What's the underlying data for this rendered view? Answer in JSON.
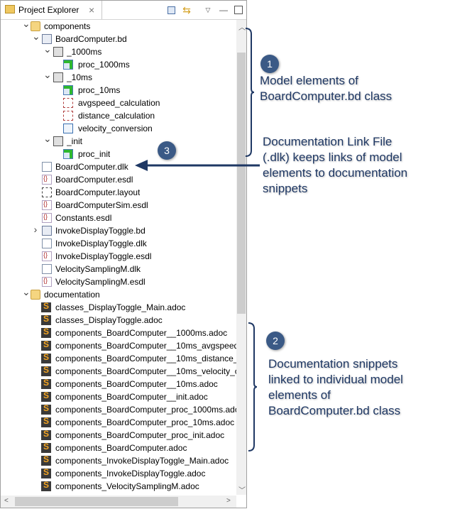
{
  "panel": {
    "title": "Project Explorer",
    "close_icon": "×",
    "toolbar": [
      "collapse-all-icon",
      "link-with-editor-icon",
      "view-menu-icon",
      "minimize-icon",
      "maximize-icon"
    ]
  },
  "tree": [
    {
      "label": "components",
      "level": 0,
      "arrow": "expanded",
      "icon": "folder"
    },
    {
      "label": "BoardComputer.bd",
      "level": 1,
      "arrow": "expanded",
      "icon": "bd"
    },
    {
      "label": "_1000ms",
      "level": 2,
      "arrow": "expanded",
      "icon": "task"
    },
    {
      "label": "proc_1000ms",
      "level": 3,
      "arrow": "none",
      "icon": "proc"
    },
    {
      "label": "_10ms",
      "level": 2,
      "arrow": "expanded",
      "icon": "task"
    },
    {
      "label": "proc_10ms",
      "level": 3,
      "arrow": "none",
      "icon": "proc"
    },
    {
      "label": "avgspeed_calculation",
      "level": 3,
      "arrow": "none",
      "icon": "func"
    },
    {
      "label": "distance_calculation",
      "level": 3,
      "arrow": "none",
      "icon": "func"
    },
    {
      "label": "velocity_conversion",
      "level": 3,
      "arrow": "none",
      "icon": "diagram"
    },
    {
      "label": "_init",
      "level": 2,
      "arrow": "expanded",
      "icon": "task"
    },
    {
      "label": "proc_init",
      "level": 3,
      "arrow": "none",
      "icon": "proc"
    },
    {
      "label": "BoardComputer.dlk",
      "level": 1,
      "arrow": "none",
      "icon": "file"
    },
    {
      "label": "BoardComputer.esdl",
      "level": 1,
      "arrow": "none",
      "icon": "esdl"
    },
    {
      "label": "BoardComputer.layout",
      "level": 1,
      "arrow": "none",
      "icon": "layout"
    },
    {
      "label": "BoardComputerSim.esdl",
      "level": 1,
      "arrow": "none",
      "icon": "esdl"
    },
    {
      "label": "Constants.esdl",
      "level": 1,
      "arrow": "none",
      "icon": "esdl"
    },
    {
      "label": "InvokeDisplayToggle.bd",
      "level": 1,
      "arrow": "collapsed",
      "icon": "bd"
    },
    {
      "label": "InvokeDisplayToggle.dlk",
      "level": 1,
      "arrow": "none",
      "icon": "file"
    },
    {
      "label": "InvokeDisplayToggle.esdl",
      "level": 1,
      "arrow": "none",
      "icon": "esdl"
    },
    {
      "label": "VelocitySamplingM.dlk",
      "level": 1,
      "arrow": "none",
      "icon": "file"
    },
    {
      "label": "VelocitySamplingM.esdl",
      "level": 1,
      "arrow": "none",
      "icon": "esdl"
    },
    {
      "label": "documentation",
      "level": 0,
      "arrow": "expanded",
      "icon": "folder"
    },
    {
      "label": "classes_DisplayToggle_Main.adoc",
      "level": 1,
      "arrow": "none",
      "icon": "adoc"
    },
    {
      "label": "classes_DisplayToggle.adoc",
      "level": 1,
      "arrow": "none",
      "icon": "adoc"
    },
    {
      "label": "components_BoardComputer__1000ms.adoc",
      "level": 1,
      "arrow": "none",
      "icon": "adoc"
    },
    {
      "label": "components_BoardComputer__10ms_avgspeed_",
      "level": 1,
      "arrow": "none",
      "icon": "adoc"
    },
    {
      "label": "components_BoardComputer__10ms_distance_c",
      "level": 1,
      "arrow": "none",
      "icon": "adoc"
    },
    {
      "label": "components_BoardComputer__10ms_velocity_co",
      "level": 1,
      "arrow": "none",
      "icon": "adoc"
    },
    {
      "label": "components_BoardComputer__10ms.adoc",
      "level": 1,
      "arrow": "none",
      "icon": "adoc"
    },
    {
      "label": "components_BoardComputer__init.adoc",
      "level": 1,
      "arrow": "none",
      "icon": "adoc"
    },
    {
      "label": "components_BoardComputer_proc_1000ms.adoc",
      "level": 1,
      "arrow": "none",
      "icon": "adoc"
    },
    {
      "label": "components_BoardComputer_proc_10ms.adoc",
      "level": 1,
      "arrow": "none",
      "icon": "adoc"
    },
    {
      "label": "components_BoardComputer_proc_init.adoc",
      "level": 1,
      "arrow": "none",
      "icon": "adoc"
    },
    {
      "label": "components_BoardComputer.adoc",
      "level": 1,
      "arrow": "none",
      "icon": "adoc"
    },
    {
      "label": "components_InvokeDisplayToggle_Main.adoc",
      "level": 1,
      "arrow": "none",
      "icon": "adoc"
    },
    {
      "label": "components_InvokeDisplayToggle.adoc",
      "level": 1,
      "arrow": "none",
      "icon": "adoc"
    },
    {
      "label": "components_VelocitySamplingM.adoc",
      "level": 1,
      "arrow": "none",
      "icon": "adoc"
    }
  ],
  "annotations": {
    "one": {
      "number": "1",
      "lines": [
        "Model elements of",
        "BoardComputer.bd class"
      ]
    },
    "three": {
      "number": "3",
      "lines": [
        "Documentation Link File",
        "(.dlk) keeps links of model",
        "elements to documentation",
        "snippets"
      ]
    },
    "two": {
      "number": "2",
      "lines": [
        "Documentation snippets",
        "linked to individual model",
        "elements of",
        "BoardComputer.bd class"
      ]
    },
    "color": "#1f3864",
    "badge_color": "#3b5a86"
  }
}
